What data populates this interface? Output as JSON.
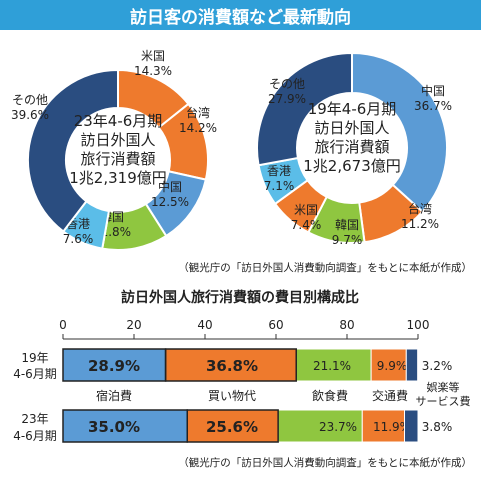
{
  "header": {
    "title": "訪日客の消費額など最新動向"
  },
  "colors": {
    "header": "#2f9fd8",
    "other": "#2a4d80",
    "us": "#ee7a2d",
    "taiwan": "#ee7a2d",
    "china": "#5b9bd5",
    "korea": "#8fc640",
    "hongkong": "#5bbde8",
    "lodging": "#5b9bd5",
    "shopping": "#ee7a2d",
    "food": "#8fc640",
    "transport": "#ee7a2d",
    "entertainment": "#2a4d80"
  },
  "source_note": "（観光庁の「訪日外国人消費動向調査」をもとに本紙が作成）",
  "chart_data": [
    {
      "type": "pie",
      "center_lines": [
        "23年4-6月期",
        "訪日外国人",
        "旅行消費額",
        "1兆2,319億円"
      ],
      "slices": [
        {
          "name": "米国",
          "value": 14.3,
          "label": "14.3%",
          "color": "#ee7a2d"
        },
        {
          "name": "台湾",
          "value": 14.2,
          "label": "14.2%",
          "color": "#ee7a2d"
        },
        {
          "name": "中国",
          "value": 12.5,
          "label": "12.5%",
          "color": "#5b9bd5"
        },
        {
          "name": "韓国",
          "value": 11.8,
          "label": "11.8%",
          "color": "#8fc640"
        },
        {
          "name": "香港",
          "value": 7.6,
          "label": "7.6%",
          "color": "#5bbde8"
        },
        {
          "name": "その他",
          "value": 39.6,
          "label": "39.6%",
          "color": "#2a4d80"
        }
      ]
    },
    {
      "type": "pie",
      "center_lines": [
        "19年4-6月期",
        "訪日外国人",
        "旅行消費額",
        "1兆2,673億円"
      ],
      "slices": [
        {
          "name": "中国",
          "value": 36.7,
          "label": "36.7%",
          "color": "#5b9bd5"
        },
        {
          "name": "台湾",
          "value": 11.2,
          "label": "11.2%",
          "color": "#ee7a2d"
        },
        {
          "name": "韓国",
          "value": 9.7,
          "label": "9.7%",
          "color": "#8fc640"
        },
        {
          "name": "米国",
          "value": 7.4,
          "label": "7.4%",
          "color": "#ee7a2d"
        },
        {
          "name": "香港",
          "value": 7.1,
          "label": "7.1%",
          "color": "#5bbde8"
        },
        {
          "name": "その他",
          "value": 27.9,
          "label": "27.9%",
          "color": "#2a4d80"
        }
      ]
    },
    {
      "type": "bar",
      "title": "訪日外国人旅行消費額の費目別構成比",
      "stacked": true,
      "orientation": "horizontal",
      "xlim": [
        0,
        100
      ],
      "ticks": [
        "0",
        "20",
        "40",
        "60",
        "80",
        "100"
      ],
      "rows": [
        {
          "label": [
            "19年",
            "4-6月期"
          ],
          "values": [
            28.9,
            36.8,
            21.1,
            9.9,
            3.2
          ],
          "labels": [
            "28.9%",
            "36.8%",
            "21.1%",
            "9.9%",
            "3.2%"
          ]
        },
        {
          "label": [
            "23年",
            "4-6月期"
          ],
          "values": [
            35.0,
            25.6,
            23.7,
            11.9,
            3.8
          ],
          "labels": [
            "35.0%",
            "25.6%",
            "23.7%",
            "11.9%",
            "3.8%"
          ]
        }
      ],
      "categories": [
        "宿泊費",
        "買い物代",
        "飲食費",
        "交通費",
        "娯楽等サービス費"
      ],
      "category_lines": [
        [
          "宿泊費"
        ],
        [
          "買い物代"
        ],
        [
          "飲食費"
        ],
        [
          "交通費"
        ],
        [
          "娯楽等",
          "サービス費"
        ]
      ],
      "colors": [
        "#5b9bd5",
        "#ee7a2d",
        "#8fc640",
        "#ee7a2d",
        "#2a4d80"
      ]
    }
  ]
}
